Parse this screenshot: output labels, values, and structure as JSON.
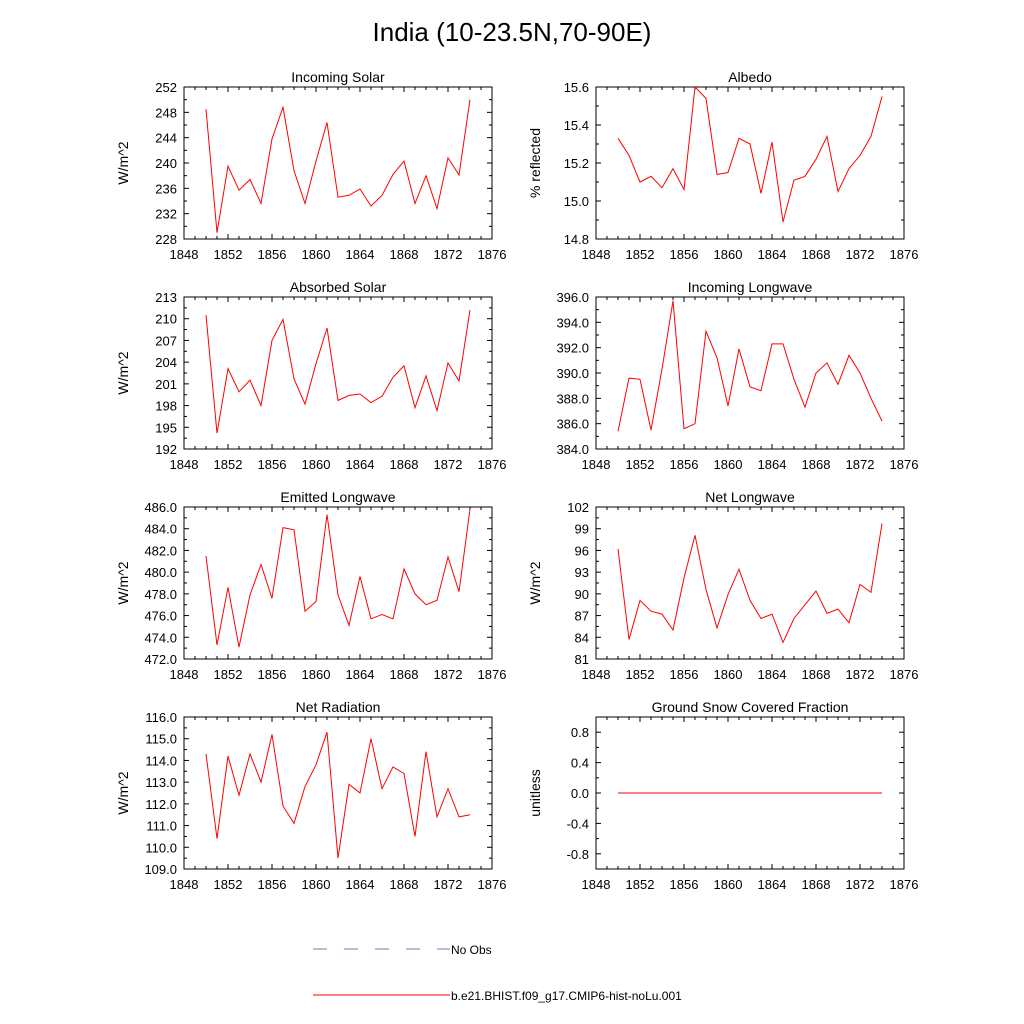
{
  "title": "India (10-23.5N,70-90E)",
  "colors": {
    "model": "#ff0000",
    "obs": "#7777bb",
    "axis": "#000000"
  },
  "legend": {
    "obs_label": "No Obs",
    "model_label": "b.e21.BHIST.f09_g17.CMIP6-hist-noLu.001"
  },
  "chart_data": [
    {
      "type": "line",
      "title": "Incoming Solar",
      "ylabel": "W/m^2",
      "xlim": [
        1848,
        1876
      ],
      "ylim": [
        228,
        252
      ],
      "xticks": [
        "1848",
        "1852",
        "1856",
        "1860",
        "1864",
        "1868",
        "1872",
        "1876"
      ],
      "yticks": [
        "228",
        "232",
        "236",
        "240",
        "244",
        "248",
        "252"
      ],
      "series": [
        {
          "name": "b.e21.BHIST.f09_g17.CMIP6-hist-noLu.001",
          "x": [
            1850,
            1851,
            1852,
            1853,
            1854,
            1855,
            1856,
            1857,
            1858,
            1859,
            1860,
            1861,
            1862,
            1863,
            1864,
            1865,
            1866,
            1867,
            1868,
            1869,
            1870,
            1871,
            1872,
            1873,
            1874
          ],
          "values": [
            248.5,
            229.0,
            239.5,
            235.7,
            237.4,
            233.6,
            243.8,
            248.8,
            238.8,
            233.6,
            240.3,
            246.4,
            234.6,
            234.9,
            235.9,
            233.2,
            234.9,
            238.2,
            240.3,
            233.6,
            238.0,
            232.8,
            240.8,
            238.1,
            250.0
          ]
        }
      ]
    },
    {
      "type": "line",
      "title": "Albedo",
      "ylabel": "% reflected",
      "xlim": [
        1848,
        1876
      ],
      "ylim": [
        14.8,
        15.6
      ],
      "xticks": [
        "1848",
        "1852",
        "1856",
        "1860",
        "1864",
        "1868",
        "1872",
        "1876"
      ],
      "yticks": [
        "14.8",
        "15.0",
        "15.2",
        "15.4",
        "15.6"
      ],
      "series": [
        {
          "name": "b.e21.BHIST.f09_g17.CMIP6-hist-noLu.001",
          "x": [
            1850,
            1851,
            1852,
            1853,
            1854,
            1855,
            1856,
            1857,
            1858,
            1859,
            1860,
            1861,
            1862,
            1863,
            1864,
            1865,
            1866,
            1867,
            1868,
            1869,
            1870,
            1871,
            1872,
            1873,
            1874
          ],
          "values": [
            15.33,
            15.24,
            15.1,
            15.13,
            15.07,
            15.17,
            15.06,
            15.6,
            15.54,
            15.14,
            15.15,
            15.33,
            15.3,
            15.04,
            15.31,
            14.89,
            15.11,
            15.13,
            15.22,
            15.34,
            15.05,
            15.17,
            15.24,
            15.34,
            15.55
          ]
        }
      ]
    },
    {
      "type": "line",
      "title": "Absorbed Solar",
      "ylabel": "W/m^2",
      "xlim": [
        1848,
        1876
      ],
      "ylim": [
        192,
        213
      ],
      "xticks": [
        "1848",
        "1852",
        "1856",
        "1860",
        "1864",
        "1868",
        "1872",
        "1876"
      ],
      "yticks": [
        "192",
        "195",
        "198",
        "201",
        "204",
        "207",
        "210",
        "213"
      ],
      "series": [
        {
          "name": "b.e21.BHIST.f09_g17.CMIP6-hist-noLu.001",
          "x": [
            1850,
            1851,
            1852,
            1853,
            1854,
            1855,
            1856,
            1857,
            1858,
            1859,
            1860,
            1861,
            1862,
            1863,
            1864,
            1865,
            1866,
            1867,
            1868,
            1869,
            1870,
            1871,
            1872,
            1873,
            1874
          ],
          "values": [
            210.5,
            194.2,
            203.1,
            199.9,
            201.5,
            198.0,
            207.0,
            209.9,
            201.7,
            198.2,
            203.8,
            208.7,
            198.7,
            199.4,
            199.6,
            198.4,
            199.3,
            201.9,
            203.5,
            197.7,
            202.1,
            197.3,
            203.9,
            201.4,
            211.2
          ]
        }
      ]
    },
    {
      "type": "line",
      "title": "Incoming Longwave",
      "ylabel": "",
      "xlim": [
        1848,
        1876
      ],
      "ylim": [
        384,
        396
      ],
      "xticks": [
        "1848",
        "1852",
        "1856",
        "1860",
        "1864",
        "1868",
        "1872",
        "1876"
      ],
      "yticks": [
        "384.0",
        "386.0",
        "388.0",
        "390.0",
        "392.0",
        "394.0",
        "396.0"
      ],
      "series": [
        {
          "name": "b.e21.BHIST.f09_g17.CMIP6-hist-noLu.001",
          "x": [
            1850,
            1851,
            1852,
            1853,
            1854,
            1855,
            1856,
            1857,
            1858,
            1859,
            1860,
            1861,
            1862,
            1863,
            1864,
            1865,
            1866,
            1867,
            1868,
            1869,
            1870,
            1871,
            1872,
            1873,
            1874
          ],
          "values": [
            385.4,
            389.6,
            389.5,
            385.5,
            390.3,
            395.7,
            385.6,
            386.0,
            393.3,
            391.2,
            387.4,
            391.9,
            388.9,
            388.6,
            392.3,
            392.3,
            389.5,
            387.3,
            390.0,
            390.8,
            389.1,
            391.4,
            390.0,
            388.0,
            386.2
          ]
        }
      ]
    },
    {
      "type": "line",
      "title": "Emitted Longwave",
      "ylabel": "W/m^2",
      "xlim": [
        1848,
        1876
      ],
      "ylim": [
        472,
        486
      ],
      "xticks": [
        "1848",
        "1852",
        "1856",
        "1860",
        "1864",
        "1868",
        "1872",
        "1876"
      ],
      "yticks": [
        "472.0",
        "474.0",
        "476.0",
        "478.0",
        "480.0",
        "482.0",
        "484.0",
        "486.0"
      ],
      "series": [
        {
          "name": "b.e21.BHIST.f09_g17.CMIP6-hist-noLu.001",
          "x": [
            1850,
            1851,
            1852,
            1853,
            1854,
            1855,
            1856,
            1857,
            1858,
            1859,
            1860,
            1861,
            1862,
            1863,
            1864,
            1865,
            1866,
            1867,
            1868,
            1869,
            1870,
            1871,
            1872,
            1873,
            1874
          ],
          "values": [
            481.5,
            473.3,
            478.6,
            473.1,
            477.9,
            480.7,
            477.6,
            484.1,
            483.9,
            476.4,
            477.3,
            485.3,
            477.9,
            475.1,
            479.6,
            475.7,
            476.1,
            475.7,
            480.3,
            478.0,
            477.0,
            477.4,
            481.4,
            478.2,
            485.8
          ]
        }
      ]
    },
    {
      "type": "line",
      "title": "Net Longwave",
      "ylabel": "W/m^2",
      "xlim": [
        1848,
        1876
      ],
      "ylim": [
        81,
        102
      ],
      "xticks": [
        "1848",
        "1852",
        "1856",
        "1860",
        "1864",
        "1868",
        "1872",
        "1876"
      ],
      "yticks": [
        "81",
        "84",
        "87",
        "90",
        "93",
        "96",
        "99",
        "102"
      ],
      "series": [
        {
          "name": "b.e21.BHIST.f09_g17.CMIP6-hist-noLu.001",
          "x": [
            1850,
            1851,
            1852,
            1853,
            1854,
            1855,
            1856,
            1857,
            1858,
            1859,
            1860,
            1861,
            1862,
            1863,
            1864,
            1865,
            1866,
            1867,
            1868,
            1869,
            1870,
            1871,
            1872,
            1873,
            1874
          ],
          "values": [
            96.2,
            83.7,
            89.1,
            87.6,
            87.2,
            85.0,
            92.2,
            98.1,
            90.6,
            85.3,
            89.9,
            93.4,
            89.1,
            86.6,
            87.2,
            83.3,
            86.6,
            88.5,
            90.4,
            87.3,
            87.9,
            86.0,
            91.3,
            90.2,
            99.7
          ]
        }
      ]
    },
    {
      "type": "line",
      "title": "Net Radiation",
      "ylabel": "W/m^2",
      "xlim": [
        1848,
        1876
      ],
      "ylim": [
        109,
        116
      ],
      "xticks": [
        "1848",
        "1852",
        "1856",
        "1860",
        "1864",
        "1868",
        "1872",
        "1876"
      ],
      "yticks": [
        "109.0",
        "110.0",
        "111.0",
        "112.0",
        "113.0",
        "114.0",
        "115.0",
        "116.0"
      ],
      "series": [
        {
          "name": "b.e21.BHIST.f09_g17.CMIP6-hist-noLu.001",
          "x": [
            1850,
            1851,
            1852,
            1853,
            1854,
            1855,
            1856,
            1857,
            1858,
            1859,
            1860,
            1861,
            1862,
            1863,
            1864,
            1865,
            1866,
            1867,
            1868,
            1869,
            1870,
            1871,
            1872,
            1873,
            1874
          ],
          "values": [
            114.3,
            110.4,
            114.2,
            112.4,
            114.3,
            113.0,
            115.2,
            111.9,
            111.1,
            112.8,
            113.8,
            115.3,
            109.5,
            112.9,
            112.5,
            115.0,
            112.7,
            113.7,
            113.4,
            110.5,
            114.4,
            111.4,
            112.7,
            111.4,
            111.5
          ]
        }
      ]
    },
    {
      "type": "line",
      "title": "Ground Snow Covered Fraction",
      "ylabel": "unitless",
      "xlim": [
        1848,
        1876
      ],
      "ylim": [
        -1.0,
        1.0
      ],
      "xticks": [
        "1848",
        "1852",
        "1856",
        "1860",
        "1864",
        "1868",
        "1872",
        "1876"
      ],
      "yticks": [
        "-0.8",
        "-0.4",
        "0.0",
        "0.4",
        "0.8"
      ],
      "yticks_values": [
        -0.8,
        -0.4,
        0.0,
        0.4,
        0.8
      ],
      "series": [
        {
          "name": "b.e21.BHIST.f09_g17.CMIP6-hist-noLu.001",
          "x": [
            1850,
            1874
          ],
          "values": [
            0.0,
            0.0
          ]
        }
      ]
    }
  ]
}
